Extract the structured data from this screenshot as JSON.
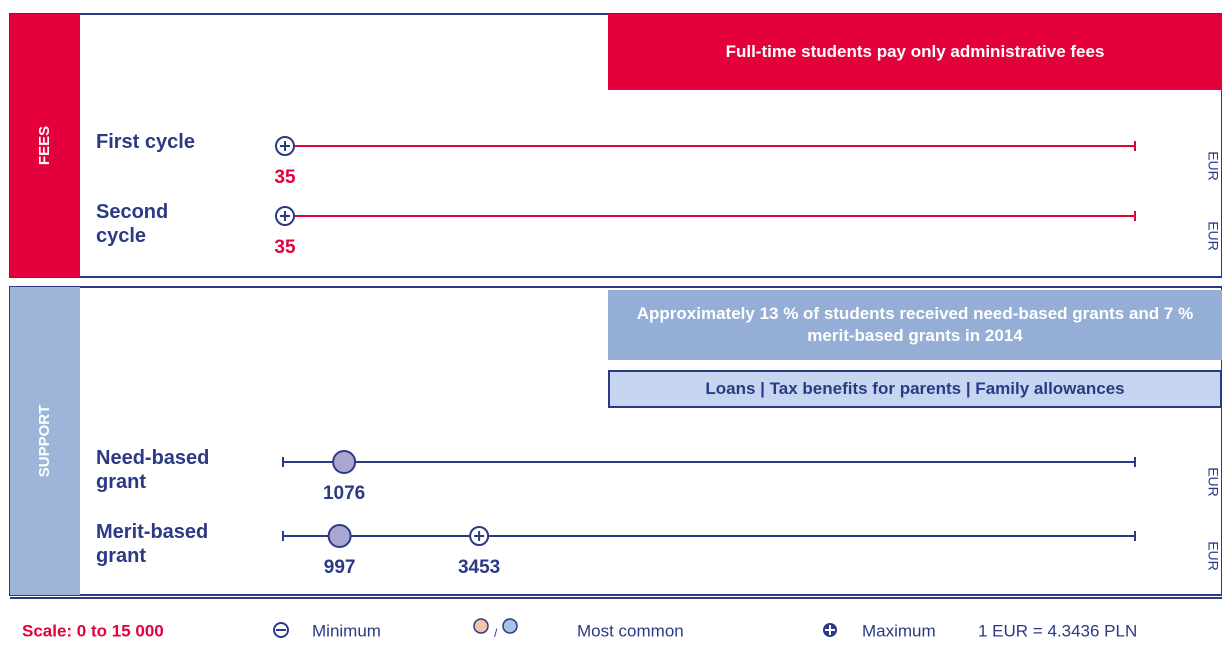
{
  "chart_data": {
    "type": "range",
    "xlim": [
      0,
      15000
    ],
    "sections": [
      {
        "label": "FEES",
        "color": "#e4003b",
        "band_color": "#e4003b",
        "notes": [
          {
            "text": "Full-time students pay only administrative fees",
            "color": "#e4003b"
          }
        ],
        "rows": [
          {
            "label": "First cycle",
            "unit": "EUR",
            "markers": [
              {
                "kind": "maximum",
                "value": 35
              }
            ]
          },
          {
            "label": "Second cycle",
            "unit": "EUR",
            "markers": [
              {
                "kind": "maximum",
                "value": 35
              }
            ]
          }
        ]
      },
      {
        "label": "SUPPORT",
        "color": "#2b3a85",
        "band_color": "#9db5d9",
        "notes": [
          {
            "text": "Approximately 13 % of students received need-based grants and 7 % merit-based grants in 2014",
            "color": "#94aed5"
          },
          {
            "text": "Loans | Tax benefits for parents | Family allowances",
            "color": "#c7d6f0"
          }
        ],
        "rows": [
          {
            "label": "Need-based grant",
            "unit": "EUR",
            "markers": [
              {
                "kind": "most_common",
                "value": 1076
              }
            ]
          },
          {
            "label": "Merit-based grant",
            "unit": "EUR",
            "markers": [
              {
                "kind": "most_common",
                "value": 997
              },
              {
                "kind": "maximum",
                "value": 3453
              }
            ]
          }
        ]
      }
    ],
    "legend": {
      "scale": "Scale: 0 to 15 000",
      "minimum": "Minimum",
      "most_common": "Most common",
      "maximum": "Maximum",
      "rate": "1 EUR = 4.3436 PLN"
    }
  }
}
